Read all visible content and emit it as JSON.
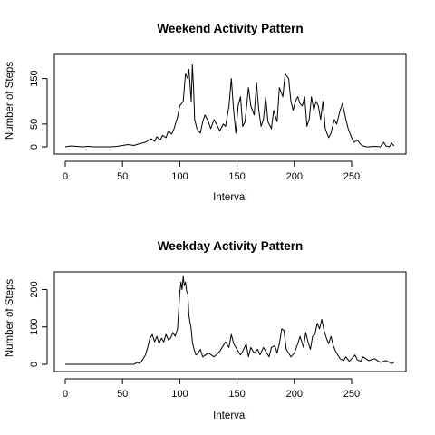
{
  "chart_data": [
    {
      "type": "line",
      "title": "Weekend Activity Pattern",
      "xlabel": "Interval",
      "ylabel": "Number of Steps",
      "xlim": [
        0,
        288
      ],
      "ylim": [
        0,
        185
      ],
      "xticks": [
        0,
        50,
        100,
        150,
        200,
        250
      ],
      "yticks": [
        0,
        50,
        150
      ],
      "grid": false,
      "x": [
        0,
        5,
        10,
        15,
        20,
        25,
        30,
        35,
        40,
        45,
        50,
        55,
        60,
        65,
        70,
        75,
        78,
        80,
        83,
        85,
        88,
        90,
        93,
        95,
        98,
        100,
        103,
        105,
        107,
        108,
        110,
        111,
        112,
        113,
        115,
        118,
        120,
        122,
        125,
        127,
        130,
        133,
        135,
        138,
        140,
        143,
        145,
        147,
        149,
        151,
        153,
        155,
        157,
        160,
        162,
        165,
        167,
        169,
        171,
        173,
        175,
        177,
        180,
        182,
        185,
        187,
        190,
        192,
        195,
        197,
        199,
        201,
        203,
        205,
        207,
        209,
        211,
        213,
        215,
        217,
        219,
        221,
        223,
        225,
        227,
        230,
        232,
        235,
        237,
        240,
        242,
        245,
        247,
        250,
        252,
        255,
        258,
        260,
        263,
        265,
        270,
        275,
        278,
        280,
        283,
        285,
        287
      ],
      "values": [
        0,
        2,
        1,
        0,
        1,
        0,
        0,
        0,
        0,
        1,
        3,
        5,
        3,
        7,
        10,
        18,
        12,
        22,
        15,
        25,
        20,
        35,
        28,
        40,
        65,
        90,
        100,
        160,
        150,
        170,
        100,
        180,
        130,
        60,
        40,
        30,
        55,
        70,
        55,
        40,
        60,
        45,
        35,
        50,
        45,
        90,
        150,
        80,
        30,
        90,
        110,
        45,
        55,
        130,
        90,
        70,
        140,
        80,
        45,
        60,
        110,
        55,
        40,
        80,
        55,
        130,
        110,
        160,
        150,
        100,
        80,
        100,
        110,
        95,
        90,
        110,
        45,
        60,
        110,
        80,
        100,
        90,
        60,
        100,
        40,
        20,
        30,
        60,
        50,
        80,
        95,
        60,
        40,
        20,
        10,
        15,
        5,
        2,
        0,
        0,
        1,
        0,
        10,
        2,
        0,
        8,
        2
      ]
    },
    {
      "type": "line",
      "title": "Weekday Activity Pattern",
      "xlabel": "Interval",
      "ylabel": "Number of Steps",
      "xlim": [
        0,
        288
      ],
      "ylim": [
        0,
        240
      ],
      "xticks": [
        0,
        50,
        100,
        150,
        200,
        250
      ],
      "yticks": [
        0,
        100,
        200
      ],
      "grid": false,
      "x": [
        0,
        10,
        20,
        30,
        40,
        50,
        55,
        60,
        63,
        65,
        67,
        70,
        72,
        74,
        76,
        78,
        80,
        82,
        84,
        86,
        88,
        90,
        92,
        94,
        96,
        98,
        100,
        101,
        102,
        103,
        104,
        105,
        106,
        107,
        108,
        110,
        111,
        112,
        114,
        116,
        118,
        120,
        125,
        130,
        135,
        140,
        143,
        145,
        147,
        150,
        153,
        155,
        158,
        160,
        162,
        165,
        168,
        170,
        173,
        175,
        178,
        180,
        183,
        185,
        187,
        189,
        191,
        193,
        195,
        197,
        200,
        203,
        205,
        208,
        210,
        212,
        214,
        216,
        218,
        220,
        222,
        224,
        226,
        228,
        230,
        232,
        234,
        236,
        238,
        240,
        243,
        245,
        248,
        250,
        253,
        255,
        258,
        260,
        265,
        270,
        275,
        280,
        285,
        287
      ],
      "values": [
        0,
        0,
        0,
        0,
        0,
        0,
        0,
        0,
        5,
        2,
        10,
        25,
        45,
        70,
        80,
        60,
        75,
        55,
        70,
        60,
        80,
        65,
        70,
        85,
        75,
        95,
        190,
        220,
        200,
        235,
        210,
        220,
        195,
        190,
        130,
        95,
        60,
        45,
        25,
        30,
        40,
        20,
        30,
        20,
        35,
        60,
        45,
        80,
        55,
        40,
        25,
        35,
        55,
        20,
        45,
        30,
        40,
        25,
        45,
        35,
        20,
        45,
        50,
        30,
        55,
        95,
        90,
        40,
        30,
        20,
        30,
        55,
        75,
        45,
        85,
        60,
        40,
        75,
        80,
        110,
        95,
        120,
        90,
        70,
        55,
        75,
        50,
        35,
        25,
        15,
        10,
        20,
        8,
        15,
        25,
        12,
        8,
        20,
        10,
        15,
        5,
        10,
        2,
        5
      ]
    }
  ]
}
